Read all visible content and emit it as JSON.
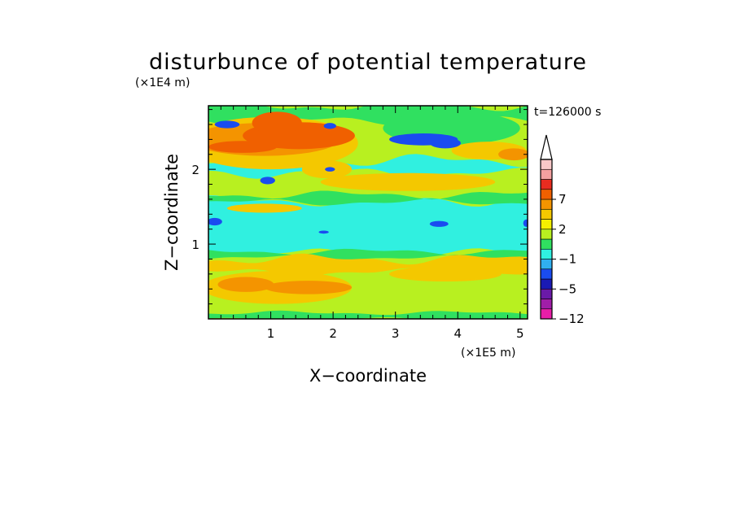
{
  "chart_data": {
    "type": "heatmap",
    "title": "disturbunce of potential temperature",
    "xlabel": "X−coordinate",
    "ylabel": "Z−coordinate",
    "x_unit": "(×1E5 m)",
    "y_unit": "(×1E4 m)",
    "time_label": "t=126000 s",
    "xlim": [
      0,
      5.12
    ],
    "ylim": [
      0,
      2.85
    ],
    "x_ticks": [
      1,
      2,
      3,
      4,
      5
    ],
    "y_ticks": [
      1,
      2
    ],
    "x_tick_labels": [
      "1",
      "2",
      "3",
      "4",
      "5"
    ],
    "y_tick_labels": [
      "1",
      "2"
    ],
    "colorbar": {
      "levels": [
        -12,
        -10,
        -8,
        -5,
        -4,
        -2,
        -1,
        0,
        1,
        2,
        3,
        5,
        7,
        9,
        11
      ],
      "labeled_levels": [
        "−12",
        "−5",
        "−1",
        "2",
        "7"
      ],
      "labeled_values": [
        -12,
        -5,
        -1,
        2,
        7
      ],
      "colors": [
        "#e81ea8",
        "#a01ea8",
        "#6a1aa8",
        "#1a1ab4",
        "#1a4cf0",
        "#30b0f0",
        "#30f0e0",
        "#30e060",
        "#b8f020",
        "#f4f000",
        "#f4c800",
        "#f49400",
        "#f06000",
        "#e82c20",
        "#f4a0a0",
        "#f8c8c8"
      ],
      "extend": "max"
    },
    "regions": [
      {
        "value": 0.5,
        "shape": "rect",
        "x": [
          0,
          5.12
        ],
        "y": [
          0,
          2.85
        ]
      },
      {
        "value": -1.5,
        "shape": "band",
        "z": [
          0.88,
          1.58
        ],
        "amp": 0.05
      },
      {
        "value": -0.5,
        "shape": "band",
        "z": [
          0.82,
          0.9
        ],
        "amp": 0.03
      },
      {
        "value": -0.5,
        "shape": "band",
        "z": [
          1.56,
          1.66
        ],
        "amp": 0.04
      },
      {
        "value": 2.5,
        "shape": "band",
        "z": [
          0.62,
          0.8
        ],
        "amp": 0.05
      },
      {
        "value": -0.5,
        "shape": "band",
        "z": [
          0.0,
          0.08
        ],
        "amp": 0.02
      },
      {
        "value": -1.5,
        "shape": "band",
        "z": [
          1.95,
          2.12
        ],
        "amp": 0.06
      },
      {
        "value": -0.5,
        "shape": "band",
        "z": [
          2.65,
          2.85
        ],
        "amp": 0.05
      },
      {
        "value": -0.5,
        "shape": "ellipse",
        "x": 3.9,
        "z": 2.55,
        "rx": 1.1,
        "rz": 0.22
      },
      {
        "value": 2.5,
        "shape": "ellipse",
        "x": 1.1,
        "z": 0.42,
        "rx": 1.2,
        "rz": 0.22
      },
      {
        "value": 2.5,
        "shape": "ellipse",
        "x": 3.8,
        "z": 0.6,
        "rx": 0.9,
        "rz": 0.1
      },
      {
        "value": 4,
        "shape": "ellipse",
        "x": 1.6,
        "z": 0.42,
        "rx": 0.7,
        "rz": 0.09
      },
      {
        "value": 4,
        "shape": "ellipse",
        "x": 0.6,
        "z": 0.46,
        "rx": 0.45,
        "rz": 0.1
      },
      {
        "value": 2.5,
        "shape": "ellipse",
        "x": 1.0,
        "z": 2.35,
        "rx": 1.4,
        "rz": 0.35
      },
      {
        "value": 4,
        "shape": "ellipse",
        "x": 0.9,
        "z": 2.4,
        "rx": 1.2,
        "rz": 0.22
      },
      {
        "value": 6,
        "shape": "ellipse",
        "x": 0.55,
        "z": 2.3,
        "rx": 0.55,
        "rz": 0.08
      },
      {
        "value": 6,
        "shape": "ellipse",
        "x": 1.45,
        "z": 2.45,
        "rx": 0.9,
        "rz": 0.18
      },
      {
        "value": 6,
        "shape": "ellipse",
        "x": 1.1,
        "z": 2.62,
        "rx": 0.4,
        "rz": 0.15
      },
      {
        "value": 2.5,
        "shape": "ellipse",
        "x": 3.2,
        "z": 1.83,
        "rx": 1.4,
        "rz": 0.12
      },
      {
        "value": 2.5,
        "shape": "ellipse",
        "x": 4.5,
        "z": 2.25,
        "rx": 0.6,
        "rz": 0.12
      },
      {
        "value": 4,
        "shape": "ellipse",
        "x": 4.9,
        "z": 2.2,
        "rx": 0.25,
        "rz": 0.08
      },
      {
        "value": 2.5,
        "shape": "ellipse",
        "x": 1.9,
        "z": 2.0,
        "rx": 0.4,
        "rz": 0.12
      },
      {
        "value": 2.5,
        "shape": "ellipse",
        "x": 0.9,
        "z": 1.48,
        "rx": 0.6,
        "rz": 0.06
      },
      {
        "value": -4.5,
        "shape": "ellipse",
        "x": 3.45,
        "z": 2.4,
        "rx": 0.55,
        "rz": 0.08
      },
      {
        "value": -4.5,
        "shape": "ellipse",
        "x": 3.8,
        "z": 2.35,
        "rx": 0.25,
        "rz": 0.07
      },
      {
        "value": -4.5,
        "shape": "ellipse",
        "x": 0.3,
        "z": 2.6,
        "rx": 0.2,
        "rz": 0.05
      },
      {
        "value": -4.5,
        "shape": "ellipse",
        "x": 1.95,
        "z": 2.58,
        "rx": 0.1,
        "rz": 0.04
      },
      {
        "value": -4.5,
        "shape": "ellipse",
        "x": 0.95,
        "z": 1.85,
        "rx": 0.12,
        "rz": 0.05
      },
      {
        "value": -4.5,
        "shape": "ellipse",
        "x": 1.95,
        "z": 2.0,
        "rx": 0.08,
        "rz": 0.03
      },
      {
        "value": -4.5,
        "shape": "ellipse",
        "x": 0.1,
        "z": 1.3,
        "rx": 0.12,
        "rz": 0.05
      },
      {
        "value": -4.5,
        "shape": "ellipse",
        "x": 3.7,
        "z": 1.27,
        "rx": 0.15,
        "rz": 0.04
      },
      {
        "value": -4.5,
        "shape": "ellipse",
        "x": 5.1,
        "z": 1.28,
        "rx": 0.05,
        "rz": 0.05
      },
      {
        "value": -4.5,
        "shape": "ellipse",
        "x": 1.85,
        "z": 1.16,
        "rx": 0.08,
        "rz": 0.02
      },
      {
        "value": -4.5,
        "shape": "ellipse",
        "x": 3.1,
        "z": 2.43,
        "rx": 0.1,
        "rz": 0.03
      }
    ]
  }
}
